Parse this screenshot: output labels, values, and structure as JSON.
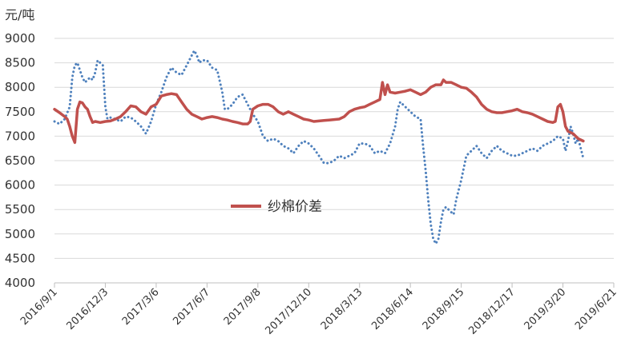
{
  "chart_data": {
    "type": "line",
    "ylabel": "元/吨",
    "ylim": [
      4000,
      9000
    ],
    "yticks": [
      4000,
      4500,
      5000,
      5500,
      6000,
      6500,
      7000,
      7500,
      8000,
      8500,
      9000
    ],
    "xticks": [
      "2016/9/1",
      "2016/12/3",
      "2017/3/6",
      "2017/6/7",
      "2017/9/8",
      "2017/12/10",
      "2018/3/13",
      "2018/6/14",
      "2018/9/15",
      "2018/12/17",
      "2019/3/20",
      "2019/6/21"
    ],
    "xlim": [
      0,
      11
    ],
    "grid": "horizontal",
    "legend": {
      "position": "center-left"
    },
    "series": [
      {
        "name": "纱棉价差",
        "color": "#c0504d",
        "style": "solid",
        "points": [
          [
            0,
            7550
          ],
          [
            0.1,
            7480
          ],
          [
            0.2,
            7400
          ],
          [
            0.25,
            7350
          ],
          [
            0.3,
            7200
          ],
          [
            0.35,
            7000
          ],
          [
            0.4,
            6870
          ],
          [
            0.45,
            7550
          ],
          [
            0.5,
            7700
          ],
          [
            0.55,
            7680
          ],
          [
            0.6,
            7600
          ],
          [
            0.65,
            7550
          ],
          [
            0.7,
            7400
          ],
          [
            0.75,
            7280
          ],
          [
            0.8,
            7300
          ],
          [
            0.9,
            7280
          ],
          [
            1.0,
            7300
          ],
          [
            1.1,
            7310
          ],
          [
            1.2,
            7350
          ],
          [
            1.3,
            7400
          ],
          [
            1.4,
            7500
          ],
          [
            1.5,
            7620
          ],
          [
            1.6,
            7600
          ],
          [
            1.7,
            7500
          ],
          [
            1.8,
            7450
          ],
          [
            1.9,
            7600
          ],
          [
            2.0,
            7650
          ],
          [
            2.1,
            7820
          ],
          [
            2.2,
            7850
          ],
          [
            2.3,
            7870
          ],
          [
            2.4,
            7850
          ],
          [
            2.5,
            7700
          ],
          [
            2.6,
            7550
          ],
          [
            2.7,
            7450
          ],
          [
            2.8,
            7400
          ],
          [
            2.9,
            7350
          ],
          [
            3.0,
            7380
          ],
          [
            3.1,
            7400
          ],
          [
            3.2,
            7380
          ],
          [
            3.3,
            7350
          ],
          [
            3.4,
            7330
          ],
          [
            3.5,
            7300
          ],
          [
            3.6,
            7280
          ],
          [
            3.7,
            7250
          ],
          [
            3.8,
            7250
          ],
          [
            3.85,
            7300
          ],
          [
            3.9,
            7550
          ],
          [
            4.0,
            7620
          ],
          [
            4.1,
            7650
          ],
          [
            4.2,
            7650
          ],
          [
            4.3,
            7600
          ],
          [
            4.4,
            7500
          ],
          [
            4.5,
            7450
          ],
          [
            4.6,
            7500
          ],
          [
            4.7,
            7450
          ],
          [
            4.8,
            7400
          ],
          [
            4.9,
            7350
          ],
          [
            5.0,
            7330
          ],
          [
            5.1,
            7300
          ],
          [
            5.2,
            7310
          ],
          [
            5.3,
            7320
          ],
          [
            5.4,
            7330
          ],
          [
            5.5,
            7340
          ],
          [
            5.6,
            7350
          ],
          [
            5.7,
            7400
          ],
          [
            5.8,
            7500
          ],
          [
            5.9,
            7550
          ],
          [
            6.0,
            7580
          ],
          [
            6.1,
            7600
          ],
          [
            6.2,
            7650
          ],
          [
            6.3,
            7700
          ],
          [
            6.4,
            7750
          ],
          [
            6.45,
            8100
          ],
          [
            6.5,
            7850
          ],
          [
            6.55,
            8050
          ],
          [
            6.6,
            7900
          ],
          [
            6.7,
            7880
          ],
          [
            6.8,
            7900
          ],
          [
            6.9,
            7920
          ],
          [
            7.0,
            7950
          ],
          [
            7.1,
            7900
          ],
          [
            7.2,
            7850
          ],
          [
            7.3,
            7900
          ],
          [
            7.4,
            8000
          ],
          [
            7.5,
            8050
          ],
          [
            7.6,
            8050
          ],
          [
            7.65,
            8150
          ],
          [
            7.7,
            8100
          ],
          [
            7.8,
            8100
          ],
          [
            7.9,
            8050
          ],
          [
            8.0,
            8000
          ],
          [
            8.1,
            7980
          ],
          [
            8.2,
            7900
          ],
          [
            8.3,
            7800
          ],
          [
            8.4,
            7650
          ],
          [
            8.5,
            7550
          ],
          [
            8.6,
            7500
          ],
          [
            8.7,
            7480
          ],
          [
            8.8,
            7480
          ],
          [
            8.9,
            7500
          ],
          [
            9.0,
            7520
          ],
          [
            9.1,
            7550
          ],
          [
            9.2,
            7500
          ],
          [
            9.3,
            7480
          ],
          [
            9.4,
            7450
          ],
          [
            9.5,
            7400
          ],
          [
            9.6,
            7350
          ],
          [
            9.7,
            7300
          ],
          [
            9.8,
            7280
          ],
          [
            9.85,
            7300
          ],
          [
            9.9,
            7600
          ],
          [
            9.95,
            7650
          ],
          [
            10.0,
            7500
          ],
          [
            10.05,
            7200
          ],
          [
            10.1,
            7100
          ],
          [
            10.2,
            7050
          ],
          [
            10.3,
            6950
          ],
          [
            10.4,
            6900
          ]
        ]
      },
      {
        "name": "",
        "color": "#4f81bd",
        "style": "dotted",
        "points": [
          [
            0,
            7300
          ],
          [
            0.1,
            7250
          ],
          [
            0.2,
            7350
          ],
          [
            0.3,
            7600
          ],
          [
            0.35,
            8200
          ],
          [
            0.4,
            8450
          ],
          [
            0.45,
            8500
          ],
          [
            0.5,
            8350
          ],
          [
            0.55,
            8200
          ],
          [
            0.6,
            8100
          ],
          [
            0.65,
            8150
          ],
          [
            0.7,
            8200
          ],
          [
            0.75,
            8150
          ],
          [
            0.8,
            8300
          ],
          [
            0.85,
            8550
          ],
          [
            0.9,
            8500
          ],
          [
            0.95,
            8450
          ],
          [
            1.0,
            7600
          ],
          [
            1.05,
            7300
          ],
          [
            1.1,
            7380
          ],
          [
            1.2,
            7350
          ],
          [
            1.3,
            7300
          ],
          [
            1.4,
            7400
          ],
          [
            1.5,
            7380
          ],
          [
            1.6,
            7300
          ],
          [
            1.7,
            7200
          ],
          [
            1.8,
            7050
          ],
          [
            1.9,
            7300
          ],
          [
            2.0,
            7650
          ],
          [
            2.1,
            7900
          ],
          [
            2.2,
            8200
          ],
          [
            2.3,
            8400
          ],
          [
            2.4,
            8300
          ],
          [
            2.5,
            8250
          ],
          [
            2.6,
            8450
          ],
          [
            2.7,
            8650
          ],
          [
            2.75,
            8750
          ],
          [
            2.8,
            8650
          ],
          [
            2.85,
            8500
          ],
          [
            2.9,
            8550
          ],
          [
            3.0,
            8550
          ],
          [
            3.1,
            8400
          ],
          [
            3.2,
            8350
          ],
          [
            3.3,
            7900
          ],
          [
            3.35,
            7550
          ],
          [
            3.4,
            7550
          ],
          [
            3.5,
            7650
          ],
          [
            3.6,
            7800
          ],
          [
            3.7,
            7850
          ],
          [
            3.8,
            7650
          ],
          [
            3.9,
            7450
          ],
          [
            4.0,
            7300
          ],
          [
            4.1,
            7000
          ],
          [
            4.2,
            6900
          ],
          [
            4.3,
            6950
          ],
          [
            4.4,
            6900
          ],
          [
            4.5,
            6800
          ],
          [
            4.6,
            6750
          ],
          [
            4.7,
            6650
          ],
          [
            4.8,
            6800
          ],
          [
            4.9,
            6900
          ],
          [
            5.0,
            6850
          ],
          [
            5.1,
            6750
          ],
          [
            5.2,
            6600
          ],
          [
            5.3,
            6450
          ],
          [
            5.4,
            6450
          ],
          [
            5.5,
            6500
          ],
          [
            5.6,
            6600
          ],
          [
            5.7,
            6550
          ],
          [
            5.8,
            6600
          ],
          [
            5.9,
            6650
          ],
          [
            6.0,
            6850
          ],
          [
            6.1,
            6850
          ],
          [
            6.2,
            6800
          ],
          [
            6.3,
            6650
          ],
          [
            6.4,
            6700
          ],
          [
            6.5,
            6650
          ],
          [
            6.6,
            6850
          ],
          [
            6.7,
            7200
          ],
          [
            6.75,
            7550
          ],
          [
            6.8,
            7700
          ],
          [
            6.9,
            7600
          ],
          [
            7.0,
            7500
          ],
          [
            7.1,
            7400
          ],
          [
            7.2,
            7350
          ],
          [
            7.25,
            6800
          ],
          [
            7.3,
            6300
          ],
          [
            7.35,
            5700
          ],
          [
            7.4,
            5200
          ],
          [
            7.45,
            4900
          ],
          [
            7.5,
            4800
          ],
          [
            7.55,
            4900
          ],
          [
            7.6,
            5250
          ],
          [
            7.65,
            5500
          ],
          [
            7.7,
            5550
          ],
          [
            7.8,
            5450
          ],
          [
            7.85,
            5400
          ],
          [
            7.9,
            5700
          ],
          [
            8.0,
            6100
          ],
          [
            8.1,
            6600
          ],
          [
            8.2,
            6700
          ],
          [
            8.3,
            6800
          ],
          [
            8.4,
            6650
          ],
          [
            8.5,
            6550
          ],
          [
            8.6,
            6700
          ],
          [
            8.7,
            6800
          ],
          [
            8.8,
            6700
          ],
          [
            8.9,
            6650
          ],
          [
            9.0,
            6600
          ],
          [
            9.1,
            6600
          ],
          [
            9.2,
            6650
          ],
          [
            9.3,
            6700
          ],
          [
            9.4,
            6750
          ],
          [
            9.5,
            6700
          ],
          [
            9.6,
            6800
          ],
          [
            9.7,
            6850
          ],
          [
            9.8,
            6900
          ],
          [
            9.9,
            7000
          ],
          [
            10.0,
            6950
          ],
          [
            10.05,
            6700
          ],
          [
            10.1,
            6900
          ],
          [
            10.15,
            7200
          ],
          [
            10.2,
            7050
          ],
          [
            10.25,
            6850
          ],
          [
            10.3,
            6950
          ],
          [
            10.35,
            6750
          ],
          [
            10.4,
            6550
          ]
        ]
      }
    ]
  }
}
